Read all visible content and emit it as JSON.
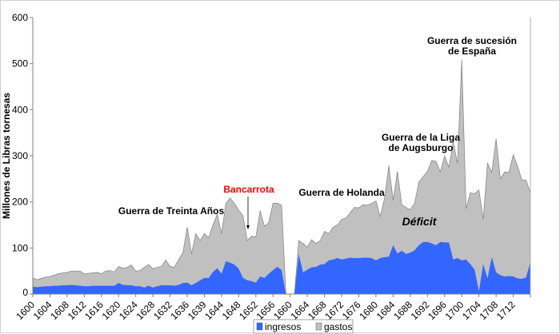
{
  "chart_data": {
    "type": "area",
    "title": "",
    "xlabel": "",
    "ylabel": "Millones de Libras tornesas",
    "ylim": [
      0,
      600
    ],
    "yticks": [
      0,
      100,
      200,
      300,
      400,
      500,
      600
    ],
    "grid": false,
    "stacked": false,
    "x_start_year": 1600,
    "x_tick_labels": [
      "1600",
      "1604",
      "1608",
      "1612",
      "1616",
      "1620",
      "1624",
      "1628",
      "1632",
      "1636",
      "1639",
      "1644",
      "1648",
      "1652",
      "1656",
      "1660",
      "1664",
      "1668",
      "1672",
      "1676",
      "1680",
      "1684",
      "1688",
      "1692",
      "1696",
      "1700",
      "1704",
      "1708",
      "1712"
    ],
    "legend_position": "bottom",
    "series": [
      {
        "name": "gastos",
        "color": "#c0c0c0",
        "values": [
          35,
          31,
          34,
          37,
          38,
          41,
          44,
          46,
          47,
          50,
          50,
          50,
          44,
          45,
          46,
          47,
          44,
          50,
          51,
          48,
          60,
          56,
          58,
          63,
          50,
          51,
          58,
          64,
          55,
          58,
          60,
          74,
          60,
          58,
          75,
          90,
          145,
          87,
          131,
          116,
          131,
          122,
          150,
          173,
          131,
          197,
          208,
          197,
          182,
          170,
          116,
          126,
          124,
          181,
          147,
          155,
          197,
          197,
          193,
          0,
          0,
          0,
          116,
          110,
          102,
          118,
          110,
          116,
          136,
          131,
          145,
          150,
          162,
          165,
          177,
          188,
          187,
          194,
          193,
          197,
          202,
          168,
          208,
          279,
          203,
          266,
          194,
          188,
          183,
          197,
          243,
          255,
          266,
          290,
          288,
          265,
          300,
          275,
          330,
          284,
          509,
          185,
          220,
          218,
          226,
          162,
          284,
          264,
          337,
          250,
          265,
          264,
          302,
          278,
          248,
          247,
          220
        ]
      },
      {
        "name": "ingresos",
        "color": "#3366ff",
        "values": [
          16,
          15,
          16,
          17,
          17,
          18,
          18,
          19,
          19,
          20,
          19,
          18,
          17,
          17,
          18,
          18,
          18,
          18,
          18,
          18,
          24,
          20,
          19,
          19,
          17,
          17,
          14,
          18,
          14,
          17,
          19,
          19,
          19,
          18,
          20,
          24,
          25,
          19,
          24,
          30,
          35,
          35,
          48,
          56,
          44,
          71,
          68,
          64,
          55,
          35,
          30,
          28,
          25,
          38,
          35,
          44,
          52,
          59,
          52,
          0,
          0,
          0,
          87,
          47,
          53,
          58,
          59,
          64,
          65,
          73,
          75,
          78,
          75,
          77,
          79,
          78,
          78,
          79,
          79,
          78,
          73,
          78,
          80,
          81,
          106,
          88,
          94,
          87,
          90,
          95,
          106,
          113,
          113,
          110,
          106,
          113,
          112,
          112,
          75,
          78,
          73,
          75,
          65,
          53,
          6,
          65,
          34,
          80,
          47,
          41,
          38,
          39,
          38,
          34,
          33,
          36,
          70
        ]
      }
    ],
    "annotations": [
      {
        "id": "treinta",
        "lines": [
          "Guerra de Treinta Años"
        ]
      },
      {
        "id": "bancarrota",
        "lines": [
          "Bancarrota"
        ],
        "color": "#ff0000"
      },
      {
        "id": "holanda",
        "lines": [
          "Guerra de Holanda"
        ]
      },
      {
        "id": "augsburgo",
        "lines": [
          "Guerra de la Liga",
          "de Augsburgo"
        ]
      },
      {
        "id": "sucesion",
        "lines": [
          "Guerra de sucesión",
          "de España"
        ]
      },
      {
        "id": "deficit",
        "lines": [
          "Déficit"
        ]
      }
    ]
  }
}
